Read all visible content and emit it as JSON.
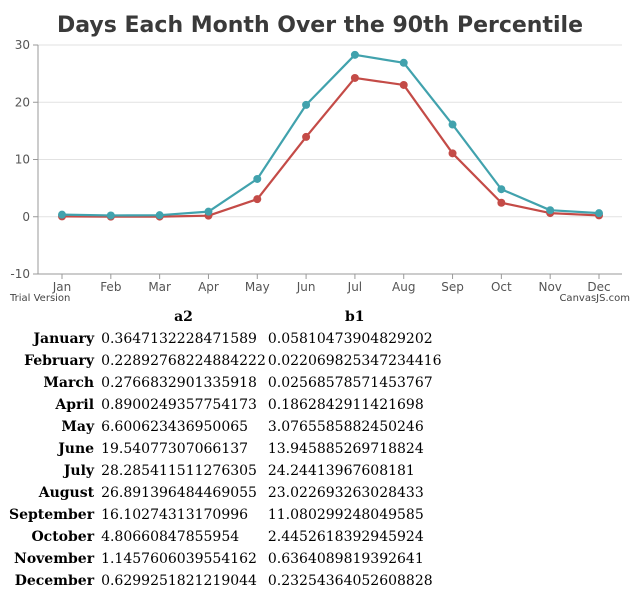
{
  "chart_data": {
    "type": "line",
    "title": "Days Each Month Over the 90th Percentile",
    "categories": [
      "Jan",
      "Feb",
      "Mar",
      "Apr",
      "May",
      "Jun",
      "Jul",
      "Aug",
      "Sep",
      "Oct",
      "Nov",
      "Dec"
    ],
    "series": [
      {
        "name": "a2",
        "color": "#41a2ad",
        "values": [
          0.3647132228471589,
          0.22892768224884222,
          0.2766832901335918,
          0.8900249357754173,
          6.600623436950065,
          19.54077307066137,
          28.285411511276305,
          26.891396484469055,
          16.10274313170996,
          4.80660847855954,
          1.1457606039554162,
          0.6299251821219044
        ]
      },
      {
        "name": "b1",
        "color": "#c44b47",
        "values": [
          0.05810473904829202,
          0.022069825347234416,
          0.02568578571453767,
          0.1862842911421698,
          3.0765585882450246,
          13.945885269718824,
          24.24413967608181,
          23.022693263028433,
          11.080299248049585,
          2.4452618392945924,
          0.6364089819392641,
          0.23254364052608828
        ]
      }
    ],
    "yticks": [
      "-10",
      "0",
      "10",
      "20",
      "30"
    ],
    "ylim": [
      -10,
      30
    ],
    "xlabel": "",
    "ylabel": "",
    "grid": "horizontal",
    "legend": "none"
  },
  "credits": {
    "left": "Trial Version",
    "right": "CanvasJS.com"
  },
  "table": {
    "headers": [
      "",
      "a2",
      "b1"
    ],
    "rows": [
      {
        "month": "January",
        "a2": "0.3647132228471589",
        "b1": "0.05810473904829202"
      },
      {
        "month": "February",
        "a2": "0.22892768224884222",
        "b1": "0.022069825347234416"
      },
      {
        "month": "March",
        "a2": "0.2766832901335918",
        "b1": "0.02568578571453767"
      },
      {
        "month": "April",
        "a2": "0.8900249357754173",
        "b1": "0.1862842911421698"
      },
      {
        "month": "May",
        "a2": "6.600623436950065",
        "b1": "3.0765585882450246"
      },
      {
        "month": "June",
        "a2": "19.54077307066137",
        "b1": "13.945885269718824"
      },
      {
        "month": "July",
        "a2": "28.285411511276305",
        "b1": "24.24413967608181"
      },
      {
        "month": "August",
        "a2": "26.891396484469055",
        "b1": "23.022693263028433"
      },
      {
        "month": "September",
        "a2": "16.10274313170996",
        "b1": "11.080299248049585"
      },
      {
        "month": "October",
        "a2": "4.80660847855954",
        "b1": "2.4452618392945924"
      },
      {
        "month": "November",
        "a2": "1.1457606039554162",
        "b1": "0.6364089819392641"
      },
      {
        "month": "December",
        "a2": "0.6299251821219044",
        "b1": "0.23254364052608828"
      }
    ]
  }
}
